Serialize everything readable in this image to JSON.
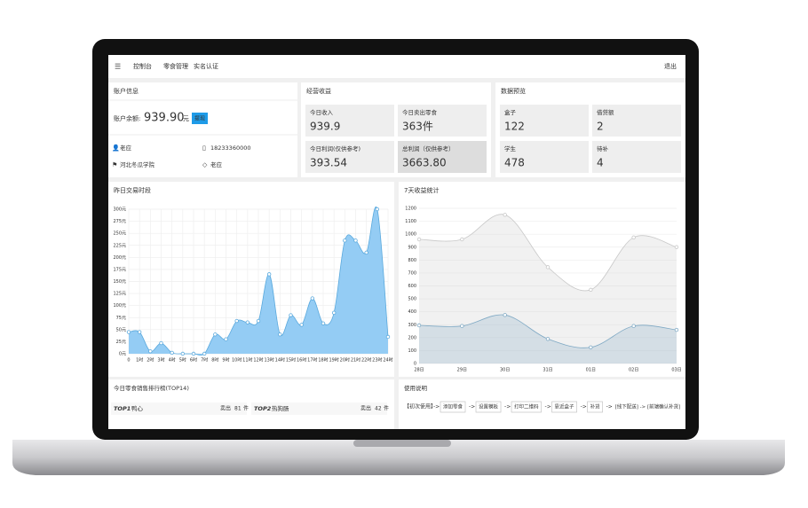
{
  "nav": {
    "items": [
      "控制台",
      "零食管理",
      "实名认证"
    ],
    "logout": "退出"
  },
  "account": {
    "title": "账户信息",
    "balance_label": "账户余额:",
    "balance": "939.90",
    "unit": "元",
    "button": "提现",
    "name": "老应",
    "phone": "18233360000",
    "school": "河北冬瓜学院",
    "nickname": "老应"
  },
  "earnings": {
    "title": "经营收益",
    "cards": [
      {
        "label": "今日收入",
        "value": "939.9"
      },
      {
        "label": "今日卖出零食",
        "value": "363件"
      },
      {
        "label": "今日利润(仅供参考)",
        "value": "393.54"
      },
      {
        "label": "总利润（仅供参考）",
        "value": "3663.80"
      }
    ]
  },
  "preview": {
    "title": "数据预览",
    "cards": [
      {
        "label": "盒子",
        "value": "122"
      },
      {
        "label": "借贷额",
        "value": "2"
      },
      {
        "label": "学生",
        "value": "478"
      },
      {
        "label": "待补",
        "value": "4"
      }
    ]
  },
  "chart_data": [
    {
      "type": "area",
      "title": "昨日交易时段",
      "categories": [
        "0",
        "1时",
        "2时",
        "3时",
        "4时",
        "5时",
        "6时",
        "7时",
        "8时",
        "9时",
        "10时",
        "11时",
        "12时",
        "13时",
        "14时",
        "15时",
        "16时",
        "17时",
        "18时",
        "19时",
        "20时",
        "21时",
        "22时",
        "23时",
        "24时"
      ],
      "values": [
        45,
        45,
        5,
        22,
        2,
        0,
        0,
        0,
        40,
        30,
        68,
        65,
        68,
        165,
        40,
        80,
        60,
        115,
        63,
        85,
        235,
        235,
        210,
        300,
        35
      ],
      "color": "#8ec9f3",
      "ylim": [
        0,
        300
      ],
      "yticks": [
        {
          "value": 0,
          "label": "0元"
        },
        {
          "value": 25,
          "label": "25元"
        },
        {
          "value": 50,
          "label": "50元"
        },
        {
          "value": 75,
          "label": "75元"
        },
        {
          "value": 100,
          "label": "100元"
        },
        {
          "value": 125,
          "label": "125元"
        },
        {
          "value": 150,
          "label": "150元"
        },
        {
          "value": 175,
          "label": "175元"
        },
        {
          "value": 200,
          "label": "200元"
        },
        {
          "value": 225,
          "label": "225元"
        },
        {
          "value": 250,
          "label": "250元"
        },
        {
          "value": 275,
          "label": "275元"
        },
        {
          "value": 300,
          "label": "300元"
        }
      ],
      "grid": true
    },
    {
      "type": "area",
      "title": "7天收益统计",
      "categories": [
        "28日",
        "29日",
        "30日",
        "31日",
        "01日",
        "02日",
        "03日"
      ],
      "series": [
        {
          "color": "#c8c8c8",
          "values": [
            960,
            960,
            1150,
            745,
            570,
            975,
            900
          ]
        },
        {
          "color": "#7fa9c4",
          "values": [
            295,
            290,
            375,
            190,
            125,
            290,
            260
          ]
        }
      ],
      "ylim": [
        0,
        1200
      ],
      "yticks": [
        0,
        100,
        200,
        300,
        400,
        500,
        600,
        700,
        800,
        900,
        1000,
        1100,
        1200
      ],
      "grid": true
    }
  ],
  "ranking": {
    "title": "今日零食销售排行榜(TOP14)",
    "rows": [
      {
        "rank": "TOP1",
        "name": "鸭心",
        "sold": "卖出",
        "count": "81",
        "unit": "件"
      },
      {
        "rank": "TOP2",
        "name": "热狗肠",
        "sold": "卖出",
        "count": "42",
        "unit": "件"
      }
    ]
  },
  "guide": {
    "title": "使用说明",
    "start": "【初次使用】",
    "steps": [
      "添加零食",
      "设置模板",
      "打印二维码",
      "靠近盒子",
      "补货"
    ],
    "end": "[线下配送] -> [前端确认补货]"
  }
}
